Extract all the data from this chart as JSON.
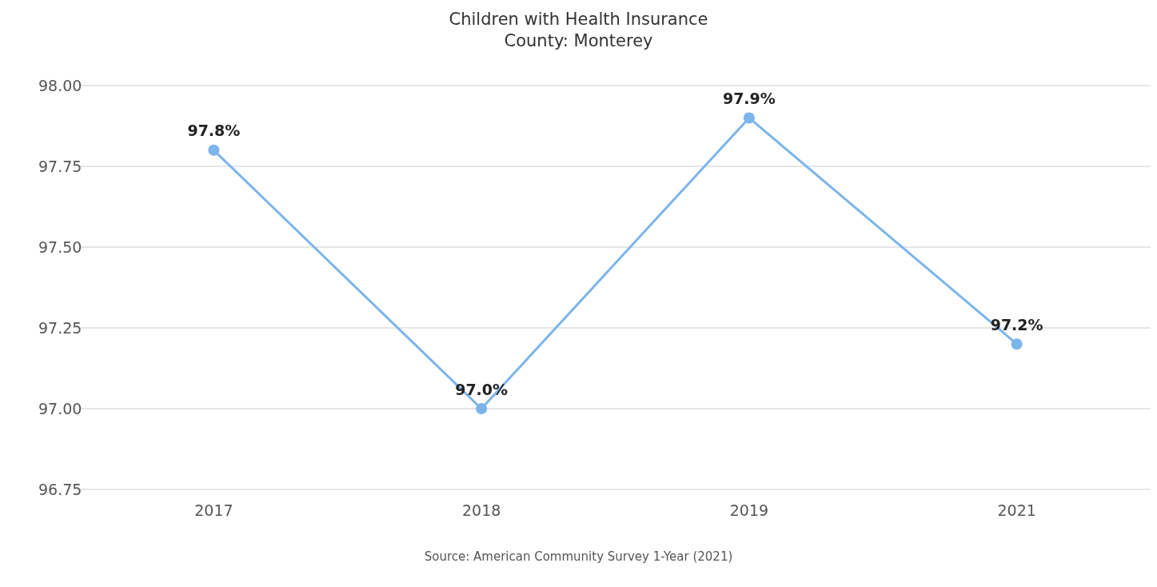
{
  "chart_data": {
    "type": "line",
    "title": "Children with Health Insurance",
    "subtitle": "County: Monterey",
    "categories": [
      "2017",
      "2018",
      "2019",
      "2021"
    ],
    "series": [
      {
        "color": "#7cb5ec",
        "values": [
          97.8,
          97.0,
          97.9,
          97.2
        ],
        "value_labels": [
          "97.8%",
          "97.0%",
          "97.9%",
          "97.2%"
        ]
      }
    ],
    "ylim": [
      96.75,
      98.0
    ],
    "yticks": [
      {
        "value": 96.75,
        "label": "96.75"
      },
      {
        "value": 97.0,
        "label": "97.00"
      },
      {
        "value": 97.25,
        "label": "97.25"
      },
      {
        "value": 97.5,
        "label": "97.50"
      },
      {
        "value": 97.75,
        "label": "97.75"
      },
      {
        "value": 98.0,
        "label": "98.00"
      }
    ],
    "grid": "y",
    "marker": "circle",
    "line_style": "solid",
    "annotations": [
      "Source: American Community Survey 1-Year (2021)"
    ]
  }
}
